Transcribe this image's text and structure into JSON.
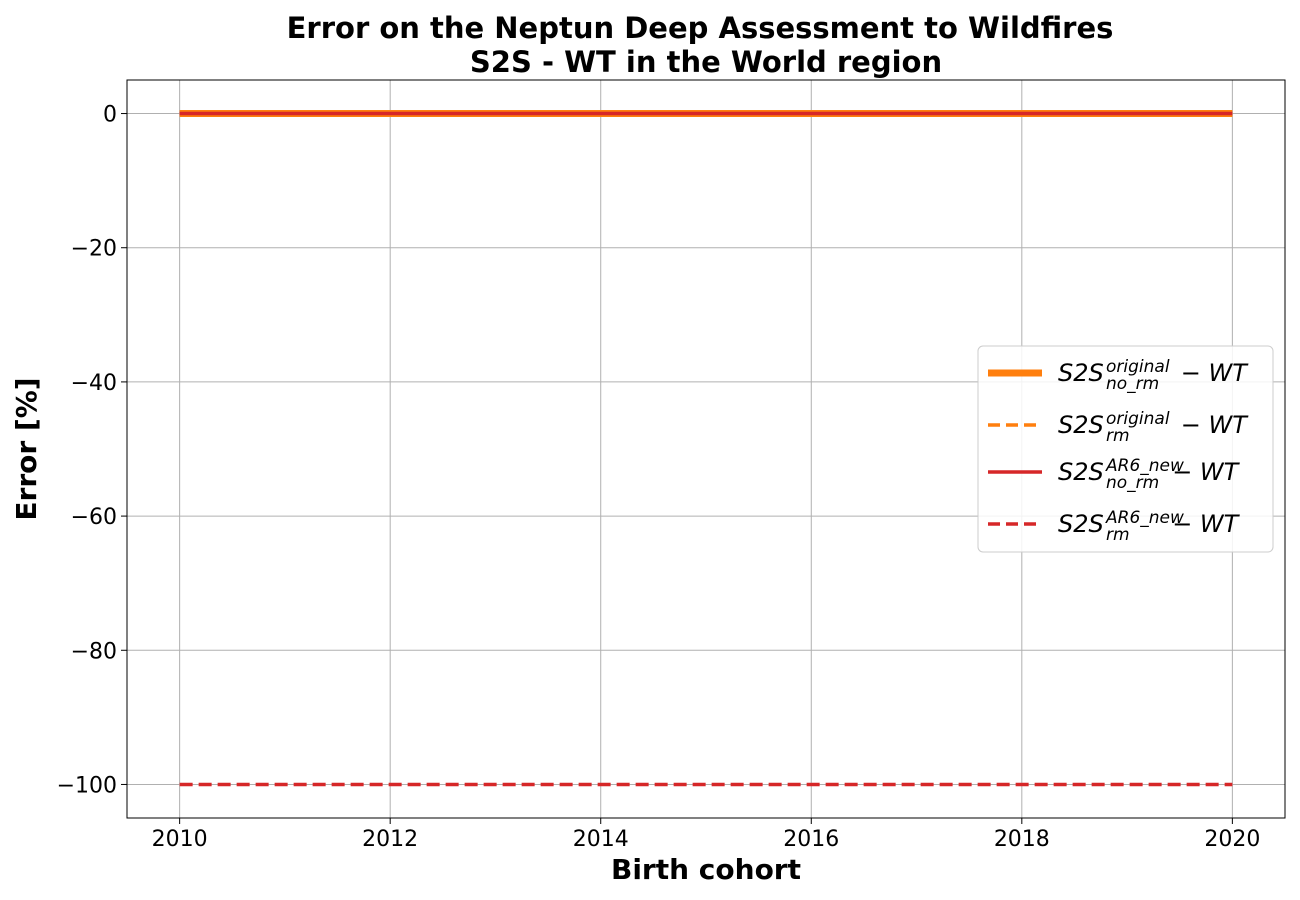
{
  "chart_data": {
    "type": "line",
    "title_line1": "Error on the Neptun Deep Assessment to Wildfires",
    "title_line2": "S2S - WT in the World region",
    "xlabel": "Birth cohort",
    "ylabel": "Error [%]",
    "xlim": [
      2009.5,
      2020.5
    ],
    "ylim": [
      -105,
      5
    ],
    "x_ticks": [
      2010,
      2012,
      2014,
      2016,
      2018,
      2020
    ],
    "y_ticks": [
      0,
      -20,
      -40,
      -60,
      -80,
      -100
    ],
    "y_tick_labels": [
      "0",
      "−20",
      "−40",
      "−60",
      "−80",
      "−100"
    ],
    "grid": true,
    "legend_position": "center-right",
    "x": [
      2010,
      2011,
      2012,
      2013,
      2014,
      2015,
      2016,
      2017,
      2018,
      2019,
      2020
    ],
    "series": [
      {
        "color": "#ff7f0e",
        "style": "solid-thick",
        "values": [
          0,
          0,
          0,
          0,
          0,
          0,
          0,
          0,
          0,
          0,
          0
        ],
        "legend": {
          "base": "S2S",
          "sup": "original",
          "sub": "no_rm",
          "tail": "− WT"
        }
      },
      {
        "color": "#ff7f0e",
        "style": "dashed",
        "values": [
          0,
          0,
          0,
          0,
          0,
          0,
          0,
          0,
          0,
          0,
          0
        ],
        "legend": {
          "base": "S2S",
          "sup": "original",
          "sub": "rm",
          "tail": "− WT"
        }
      },
      {
        "color": "#d62728",
        "style": "solid",
        "values": [
          0,
          0,
          0,
          0,
          0,
          0,
          0,
          0,
          0,
          0,
          0
        ],
        "legend": {
          "base": "S2S",
          "sup": "AR6_new",
          "sub": "no_rm",
          "tail": "− WT"
        }
      },
      {
        "color": "#d62728",
        "style": "dashed",
        "values": [
          -100,
          -100,
          -100,
          -100,
          -100,
          -100,
          -100,
          -100,
          -100,
          -100,
          -100
        ],
        "legend": {
          "base": "S2S",
          "sup": "AR6_new",
          "sub": "rm",
          "tail": "− WT"
        }
      }
    ]
  }
}
